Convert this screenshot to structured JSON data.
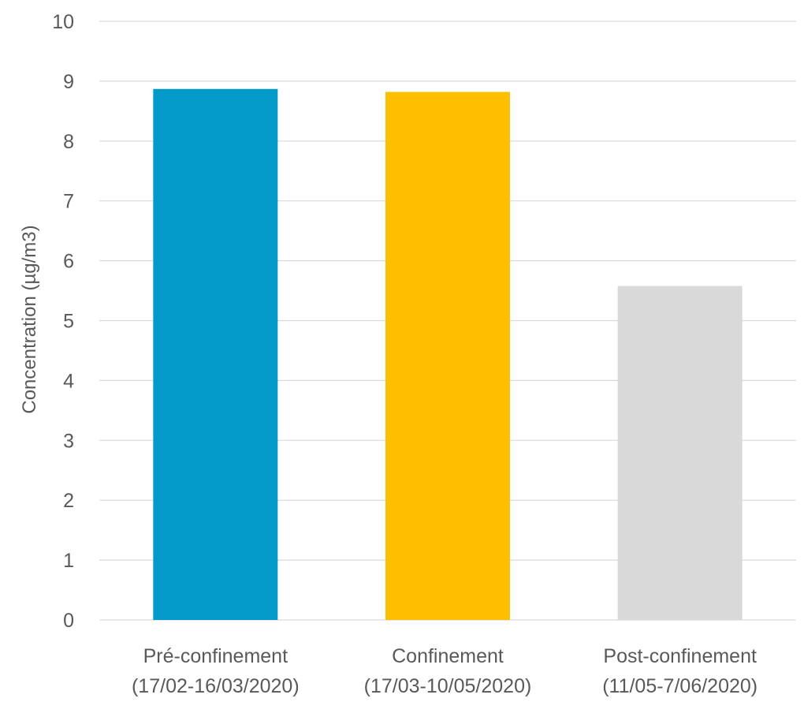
{
  "chart_data": {
    "type": "bar",
    "title": "",
    "xlabel": "",
    "ylabel": "Concentration (µg/m3)",
    "ylim": [
      0,
      10
    ],
    "yticks": [
      0,
      1,
      2,
      3,
      4,
      5,
      6,
      7,
      8,
      9,
      10
    ],
    "grid": true,
    "legend": "none",
    "categories": [
      [
        "Pré-confinement",
        "(17/02-16/03/2020)"
      ],
      [
        "Confinement",
        "(17/03-10/05/2020)"
      ],
      [
        "Post-confinement",
        "(11/05-7/06/2020)"
      ]
    ],
    "values": [
      8.87,
      8.82,
      5.58
    ],
    "colors": [
      "#0399C9",
      "#FDBF00",
      "#D9D9D9"
    ],
    "gridline_color": "#D9D9D9",
    "text_color": "#595959"
  }
}
